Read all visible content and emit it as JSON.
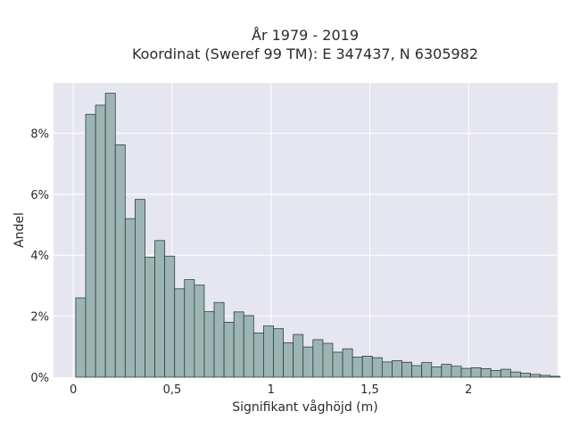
{
  "chart_data": {
    "type": "bar",
    "title_line1": "År 1979 - 2019",
    "title_line2": "Koordinat (Sweref 99 TM): E 347437, N 6305982",
    "xlabel": "Signifikant våghöjd (m)",
    "ylabel": "Andel",
    "bin_width": 0.05,
    "bin_start": 0.0125,
    "xlim": [
      -0.1,
      2.45
    ],
    "ylim": [
      0,
      0.0965
    ],
    "x_ticks": [
      0,
      0.5,
      1,
      1.5,
      2
    ],
    "x_tick_labels": [
      "0",
      "0,5",
      "1",
      "1,5",
      "2"
    ],
    "y_ticks": [
      0,
      0.02,
      0.04,
      0.06,
      0.08
    ],
    "y_tick_labels": [
      "0%",
      "2%",
      "4%",
      "6%",
      "8%"
    ],
    "grid": true,
    "values": [
      0.026,
      0.0862,
      0.0892,
      0.0931,
      0.0762,
      0.052,
      0.0583,
      0.0393,
      0.0448,
      0.0397,
      0.029,
      0.032,
      0.0302,
      0.0215,
      0.0245,
      0.018,
      0.0214,
      0.0202,
      0.0145,
      0.0168,
      0.0159,
      0.0113,
      0.014,
      0.0099,
      0.0123,
      0.0111,
      0.0082,
      0.0093,
      0.0066,
      0.0069,
      0.0064,
      0.005,
      0.0054,
      0.0049,
      0.0038,
      0.0048,
      0.0034,
      0.0042,
      0.0036,
      0.0029,
      0.0031,
      0.0028,
      0.0022,
      0.0026,
      0.0017,
      0.0013,
      0.0009,
      0.0006,
      0.0003
    ]
  },
  "colors": {
    "plot_bg": "#e5e6ef",
    "grid": "#ffffff",
    "bar_fill": "#9db5b2",
    "bar_stroke": "#2f3f3d",
    "text": "#2b2b2b"
  }
}
